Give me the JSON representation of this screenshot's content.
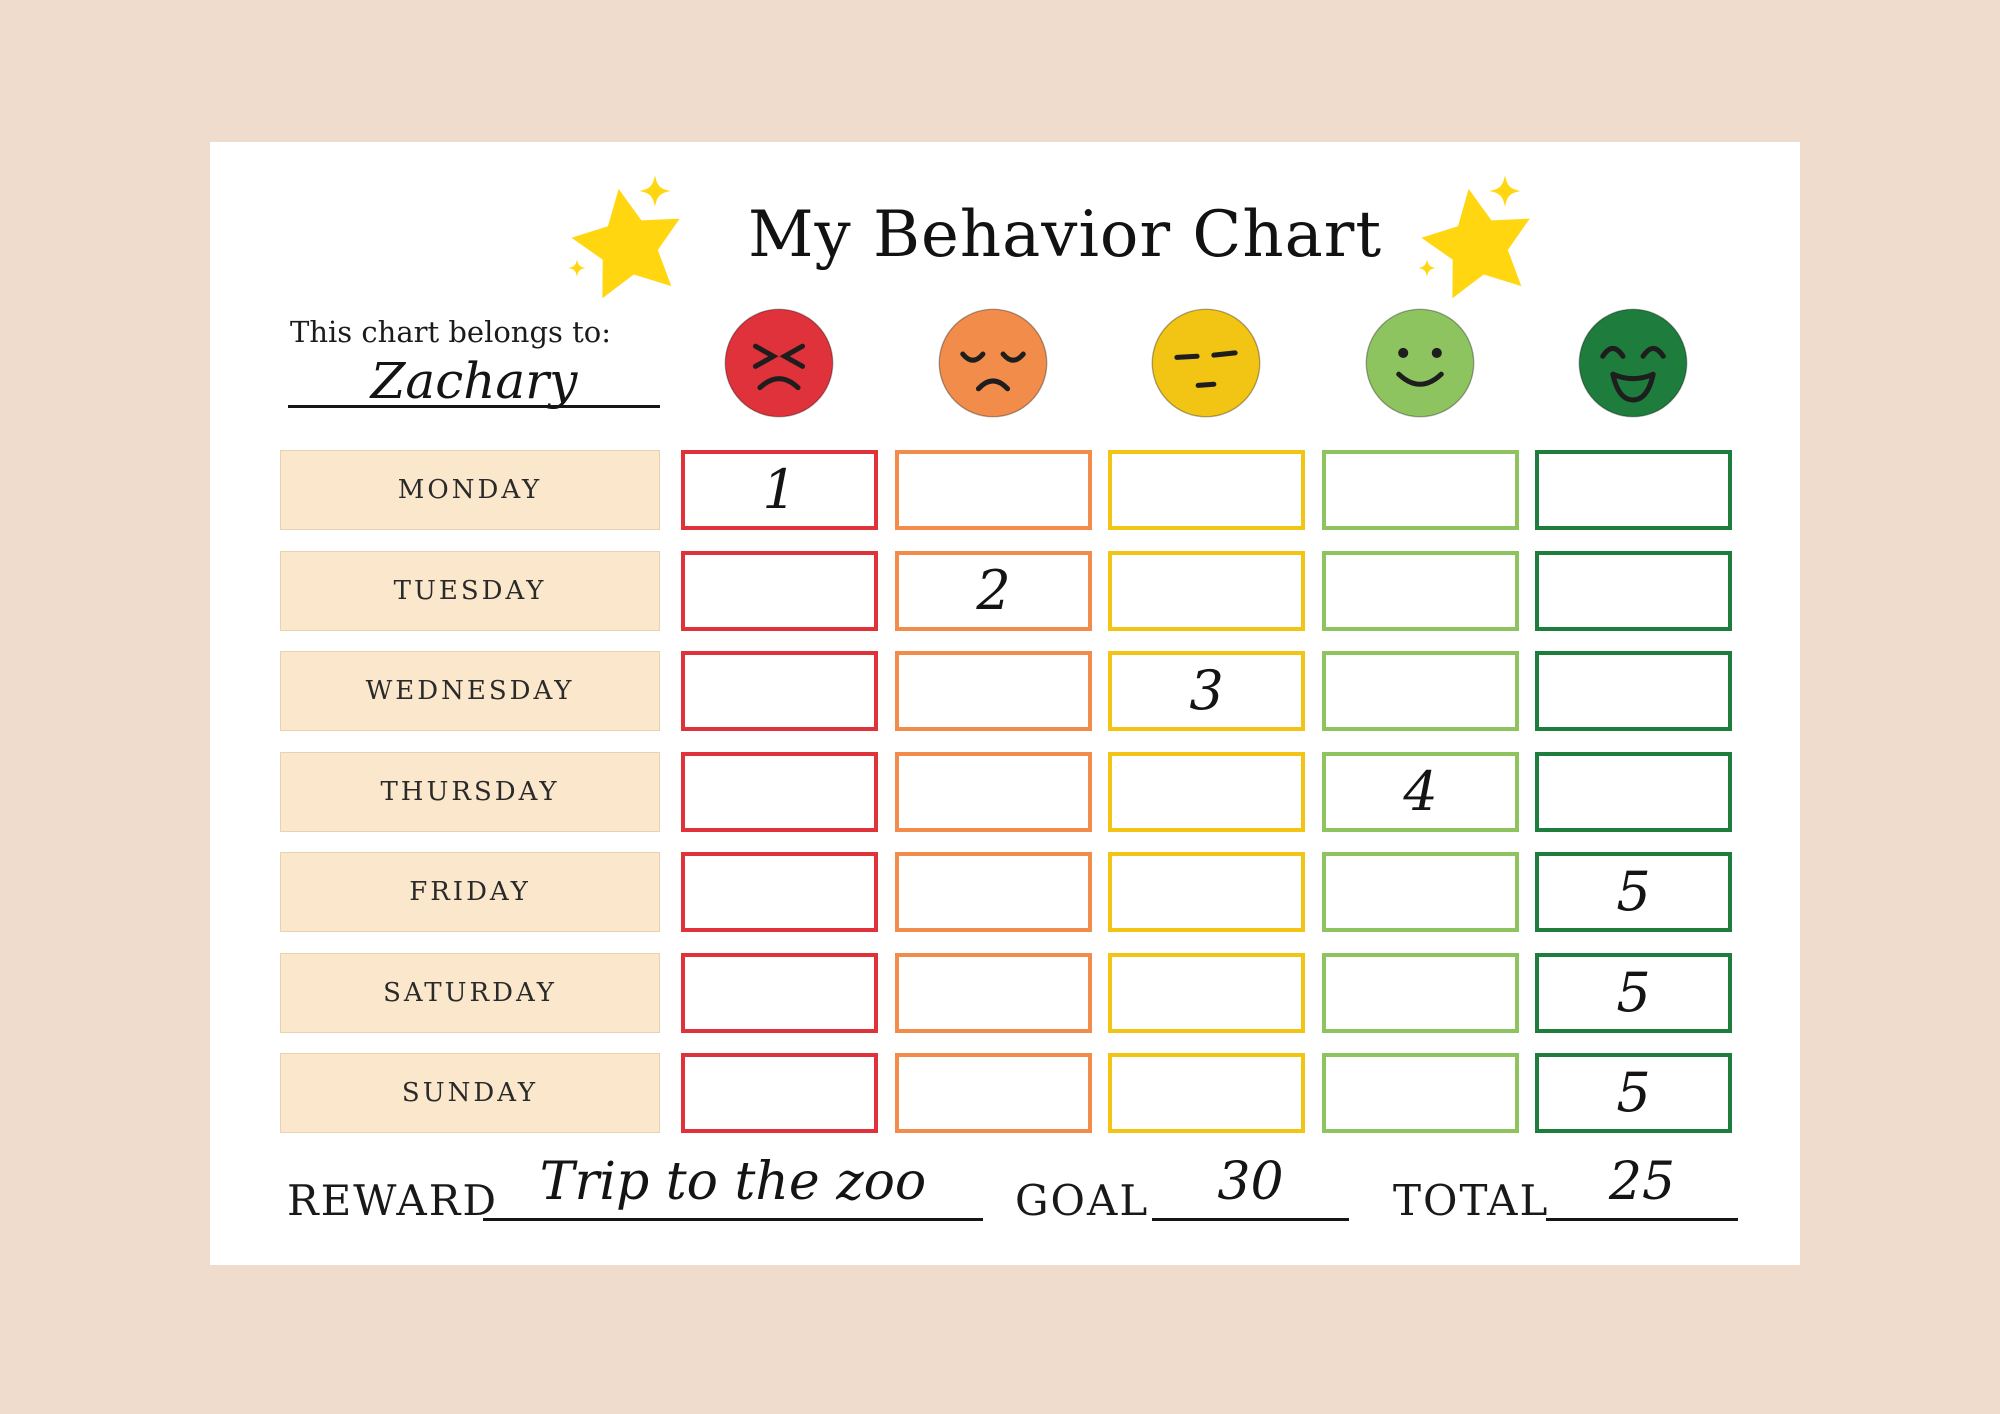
{
  "page": {
    "background_color": "#efdccd",
    "card_color": "#ffffff"
  },
  "header": {
    "title": "My Behavior Chart",
    "star_color": "#ffd60f"
  },
  "owner": {
    "label": "This chart belongs to:",
    "name": "Zachary"
  },
  "moods": [
    {
      "id": "angry",
      "label": "angry red face",
      "color": "#e0323a"
    },
    {
      "id": "sad",
      "label": "sad orange face",
      "color": "#f28c4b"
    },
    {
      "id": "neutral",
      "label": "neutral yellow face",
      "color": "#f2c413"
    },
    {
      "id": "happy",
      "label": "happy light-green face",
      "color": "#8ec45f"
    },
    {
      "id": "laughing",
      "label": "laughing dark-green face",
      "color": "#1e7d3c"
    }
  ],
  "chart_data": {
    "type": "table",
    "title": "My Behavior Chart",
    "columns": [
      "angry",
      "sad",
      "neutral",
      "happy",
      "laughing"
    ],
    "rows": [
      {
        "day": "MONDAY",
        "scores": [
          "1",
          "",
          "",
          "",
          ""
        ]
      },
      {
        "day": "TUESDAY",
        "scores": [
          "",
          "2",
          "",
          "",
          ""
        ]
      },
      {
        "day": "WEDNESDAY",
        "scores": [
          "",
          "",
          "3",
          "",
          ""
        ]
      },
      {
        "day": "THURSDAY",
        "scores": [
          "",
          "",
          "",
          "4",
          ""
        ]
      },
      {
        "day": "FRIDAY",
        "scores": [
          "",
          "",
          "",
          "",
          "5"
        ]
      },
      {
        "day": "SATURDAY",
        "scores": [
          "",
          "",
          "",
          "",
          "5"
        ]
      },
      {
        "day": "SUNDAY",
        "scores": [
          "",
          "",
          "",
          "",
          "5"
        ]
      }
    ]
  },
  "footer": {
    "reward_label": "REWARD",
    "reward_value": "Trip to the zoo",
    "goal_label": "GOAL",
    "goal_value": "30",
    "total_label": "TOTAL",
    "total_value": "25"
  }
}
